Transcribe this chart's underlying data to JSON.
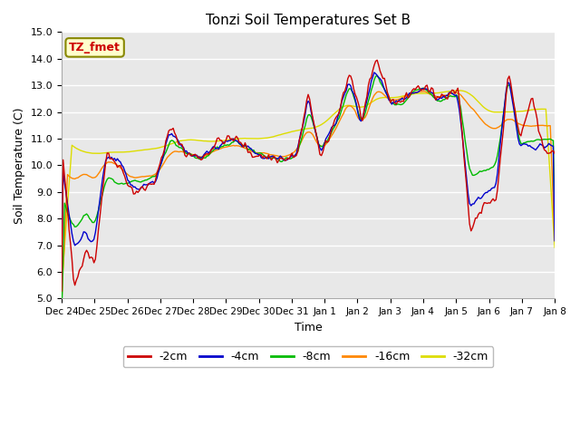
{
  "title": "Tonzi Soil Temperatures Set B",
  "xlabel": "Time",
  "ylabel": "Soil Temperature (C)",
  "ylim": [
    5.0,
    15.0
  ],
  "yticks": [
    5.0,
    6.0,
    7.0,
    8.0,
    9.0,
    10.0,
    11.0,
    12.0,
    13.0,
    14.0,
    15.0
  ],
  "plot_bg_color": "#e8e8e8",
  "fig_bg_color": "#ffffff",
  "colors": {
    "-2cm": "#cc0000",
    "-4cm": "#0000cc",
    "-8cm": "#00bb00",
    "-16cm": "#ff8800",
    "-32cm": "#dddd00"
  },
  "annotation_text": "TZ_fmet",
  "annotation_color": "#cc0000",
  "annotation_bg": "#ffffcc",
  "annotation_edge": "#888800",
  "days": [
    "Dec 24",
    "Dec 25",
    "Dec 26",
    "Dec 27",
    "Dec 28",
    "Dec 29",
    "Dec 30",
    "Dec 31",
    "Jan 1",
    "Jan 2",
    "Jan 3",
    "Jan 4",
    "Jan 5",
    "Jan 6",
    "Jan 7",
    "Jan 8"
  ],
  "n_points": 337,
  "anchors_x": [
    0,
    8,
    16,
    22,
    30,
    38,
    48,
    56,
    64,
    74,
    84,
    96,
    106,
    118,
    130,
    140,
    152,
    160,
    168,
    176,
    188,
    196,
    204,
    214,
    224,
    232,
    240,
    248,
    256,
    264,
    270,
    278,
    288,
    296,
    304,
    312,
    320,
    328,
    336
  ],
  "y2cm": [
    10.5,
    5.4,
    6.9,
    6.3,
    10.4,
    10.1,
    9.0,
    9.1,
    9.5,
    11.5,
    10.4,
    10.3,
    10.9,
    11.0,
    10.4,
    10.3,
    10.2,
    10.4,
    12.7,
    10.2,
    12.0,
    13.5,
    11.7,
    14.0,
    12.4,
    12.4,
    12.9,
    12.9,
    12.5,
    12.8,
    12.8,
    7.5,
    8.6,
    8.7,
    13.5,
    10.9,
    12.6,
    10.5,
    10.5
  ],
  "y4cm": [
    10.2,
    6.9,
    7.5,
    7.0,
    10.3,
    10.2,
    9.2,
    9.2,
    9.4,
    11.3,
    10.5,
    10.3,
    10.8,
    11.0,
    10.5,
    10.3,
    10.2,
    10.4,
    12.4,
    10.5,
    11.8,
    13.2,
    11.6,
    13.6,
    12.4,
    12.4,
    12.7,
    12.9,
    12.5,
    12.7,
    12.7,
    8.4,
    9.0,
    9.2,
    13.4,
    10.8,
    10.7,
    10.7,
    10.7
  ],
  "y8cm": [
    8.8,
    7.6,
    8.2,
    7.8,
    9.5,
    9.4,
    9.3,
    9.4,
    9.6,
    11.0,
    10.5,
    10.2,
    10.7,
    10.9,
    10.5,
    10.3,
    10.2,
    10.4,
    12.1,
    10.5,
    11.7,
    13.1,
    11.5,
    13.5,
    12.3,
    12.3,
    12.8,
    12.9,
    12.4,
    12.6,
    12.7,
    9.6,
    9.8,
    10.0,
    13.3,
    10.8,
    10.9,
    11.0,
    10.9
  ],
  "y16cm": [
    9.9,
    9.4,
    9.8,
    9.4,
    10.2,
    10.0,
    9.5,
    9.6,
    9.6,
    10.5,
    10.5,
    10.3,
    10.6,
    10.8,
    10.5,
    10.4,
    10.3,
    10.5,
    11.5,
    10.5,
    11.5,
    12.5,
    11.4,
    12.9,
    12.4,
    12.5,
    12.7,
    12.8,
    12.5,
    12.7,
    12.8,
    12.2,
    11.5,
    11.3,
    11.8,
    11.5,
    11.5,
    11.5,
    11.5
  ],
  "y32cm": [
    11.1,
    10.6,
    10.5,
    10.4,
    10.5,
    10.5,
    10.5,
    10.6,
    10.6,
    10.8,
    11.0,
    10.9,
    10.9,
    11.0,
    11.0,
    11.0,
    11.2,
    11.3,
    11.4,
    11.4,
    12.1,
    12.4,
    12.0,
    12.6,
    12.5,
    12.6,
    12.7,
    12.7,
    12.7,
    12.8,
    12.8,
    12.8,
    12.0,
    12.0,
    12.0,
    12.0,
    12.1,
    12.1,
    12.1
  ]
}
